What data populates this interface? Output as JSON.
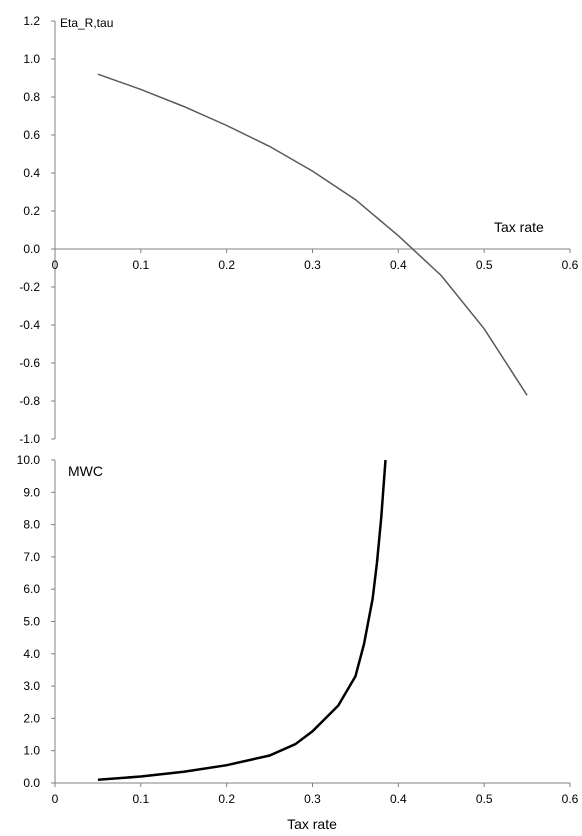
{
  "chart_data": [
    {
      "type": "line",
      "title": "",
      "ylabel": "Eta_R,tau",
      "xlabel": "Tax rate",
      "xlim": [
        0,
        0.6
      ],
      "ylim": [
        -1.0,
        1.2
      ],
      "xticks": [
        "0",
        "0.1",
        "0.2",
        "0.3",
        "0.4",
        "0.5",
        "0.6"
      ],
      "yticks": [
        "1.2",
        "1.0",
        "0.8",
        "0.6",
        "0.4",
        "0.2",
        "0.0",
        "-0.2",
        "-0.4",
        "-0.6",
        "-0.8",
        "-1.0"
      ],
      "grid": false,
      "series": [
        {
          "x": [
            0.05,
            0.1,
            0.15,
            0.2,
            0.25,
            0.3,
            0.35,
            0.4,
            0.45,
            0.5,
            0.55
          ],
          "y": [
            0.92,
            0.84,
            0.75,
            0.65,
            0.54,
            0.41,
            0.26,
            0.07,
            -0.14,
            -0.42,
            -0.77
          ]
        }
      ]
    },
    {
      "type": "line",
      "title": "",
      "ylabel": "MWC",
      "xlabel": "Tax rate",
      "xlim": [
        0,
        0.6
      ],
      "ylim": [
        0,
        10
      ],
      "xticks": [
        "0",
        "0.1",
        "0.2",
        "0.3",
        "0.4",
        "0.5",
        "0.6"
      ],
      "yticks": [
        "10.0",
        "9.0",
        "8.0",
        "7.0",
        "6.0",
        "5.0",
        "4.0",
        "3.0",
        "2.0",
        "1.0",
        "0.0"
      ],
      "grid": false,
      "series": [
        {
          "x": [
            0.05,
            0.1,
            0.15,
            0.2,
            0.25,
            0.28,
            0.3,
            0.33,
            0.35,
            0.36,
            0.37,
            0.375,
            0.38,
            0.385
          ],
          "y": [
            0.1,
            0.2,
            0.35,
            0.55,
            0.85,
            1.2,
            1.6,
            2.4,
            3.3,
            4.3,
            5.7,
            6.8,
            8.2,
            10.0
          ]
        }
      ]
    }
  ]
}
